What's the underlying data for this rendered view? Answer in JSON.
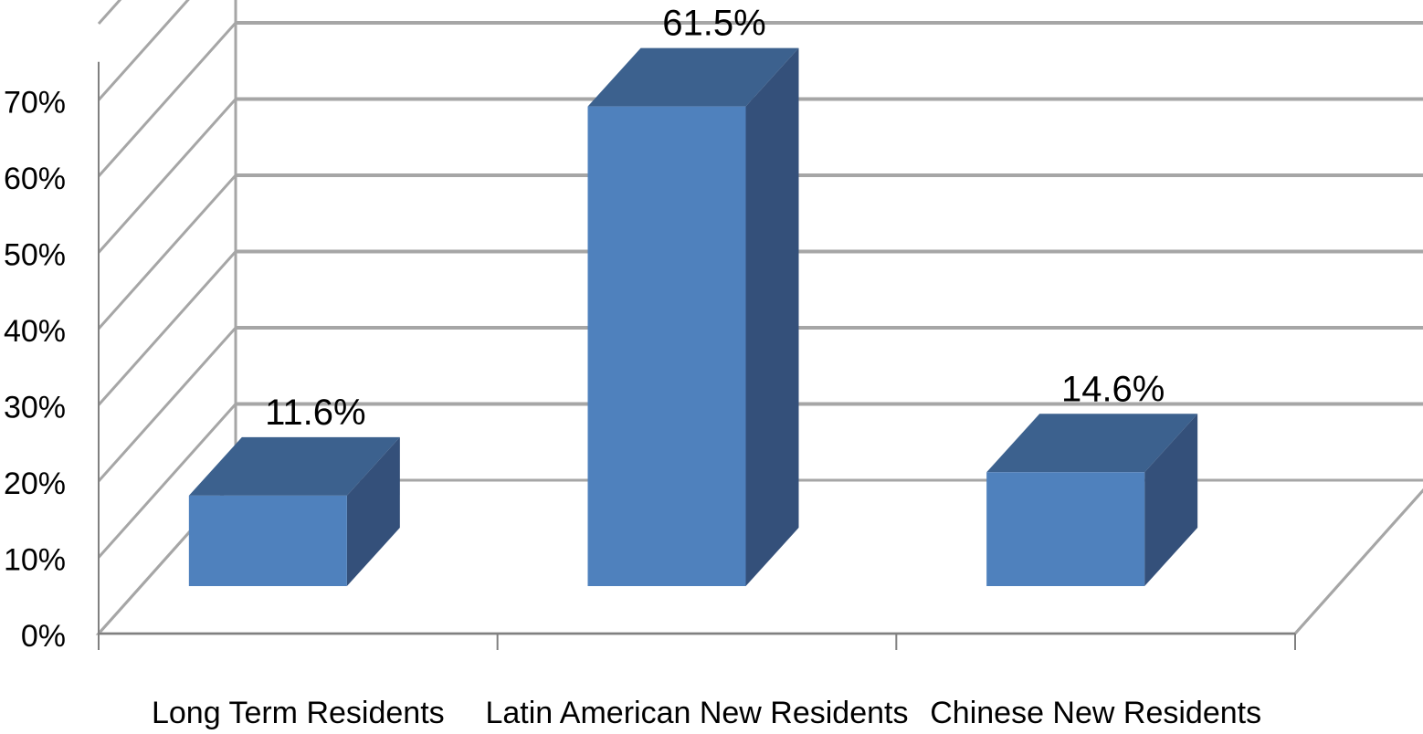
{
  "chart_data": {
    "type": "bar",
    "style": "3d-column",
    "title": "",
    "xlabel": "",
    "ylabel": "",
    "ylim": [
      0,
      70
    ],
    "yticks": [
      "0%",
      "10%",
      "20%",
      "30%",
      "40%",
      "50%",
      "60%",
      "70%"
    ],
    "grid": true,
    "legend": "none",
    "categories": [
      "Long Term Residents",
      "Latin American New Residents",
      "Chinese New Residents"
    ],
    "values": [
      11.6,
      61.5,
      14.6
    ],
    "data_labels": [
      "11.6%",
      "61.5%",
      "14.6%"
    ],
    "colors": {
      "bar_front": "#4f81bd",
      "bar_top": "#3c618e",
      "bar_side": "#34507a",
      "grid": "#a6a6a6",
      "axis": "#808080"
    }
  }
}
